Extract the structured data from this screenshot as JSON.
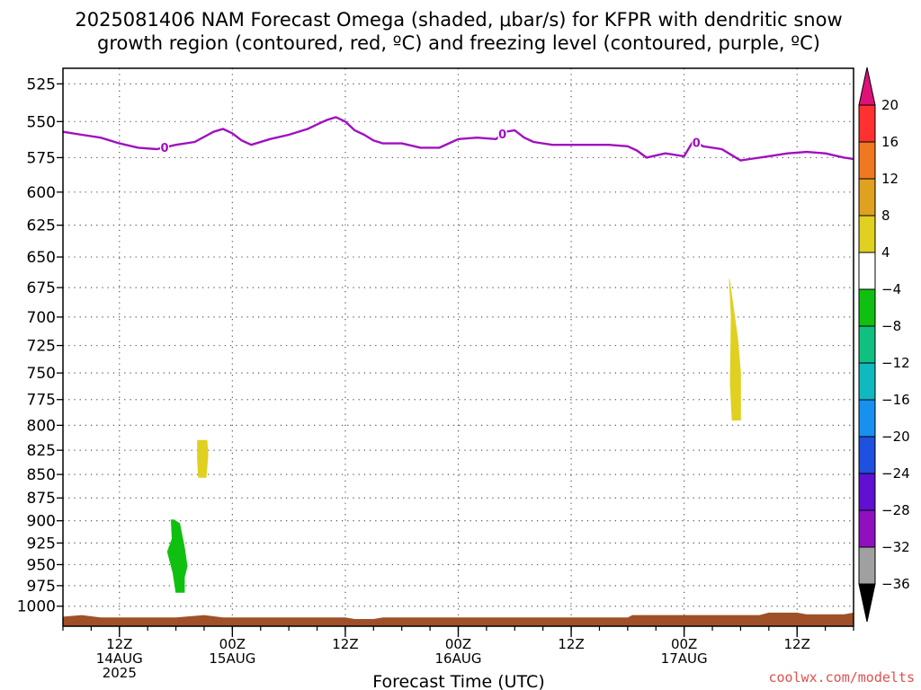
{
  "chart_data": {
    "type": "heatmap",
    "title_line1": "2025081406 NAM Forecast Omega (shaded, μbar/s) for KFPR with dendritic snow",
    "title_line2": "growth region (contoured, red, ºC) and freezing level (contoured, purple, ºC)",
    "xlabel": "Forecast Time (UTC)",
    "ylabel": "",
    "credit": "coolwx.com/modelts",
    "x_range_hours": [
      0,
      84
    ],
    "y_range_hpa": [
      1025,
      515
    ],
    "y_scale": "log",
    "grid": true,
    "legend_position": "right colorbar",
    "y_ticks": [
      525,
      550,
      575,
      600,
      625,
      650,
      675,
      700,
      725,
      750,
      775,
      800,
      825,
      850,
      875,
      900,
      925,
      950,
      975,
      1000
    ],
    "x_ticks": [
      {
        "hour": 6,
        "label": "12Z",
        "date": "14AUG",
        "year": "2025"
      },
      {
        "hour": 18,
        "label": "00Z",
        "date": "15AUG",
        "year": ""
      },
      {
        "hour": 30,
        "label": "12Z",
        "date": "",
        "year": ""
      },
      {
        "hour": 42,
        "label": "00Z",
        "date": "16AUG",
        "year": ""
      },
      {
        "hour": 54,
        "label": "12Z",
        "date": "",
        "year": ""
      },
      {
        "hour": 66,
        "label": "00Z",
        "date": "17AUG",
        "year": ""
      },
      {
        "hour": 78,
        "label": "12Z",
        "date": "",
        "year": ""
      }
    ],
    "colorbar": {
      "tick_labels": [
        "20",
        "16",
        "12",
        "8",
        "4",
        "−4",
        "−8",
        "−12",
        "−16",
        "−20",
        "−24",
        "−28",
        "−32",
        "−36"
      ],
      "bins": [
        {
          "from": 16,
          "to": 20,
          "color": "#ff3030"
        },
        {
          "from": 12,
          "to": 16,
          "color": "#f07820"
        },
        {
          "from": 8,
          "to": 12,
          "color": "#e0a020"
        },
        {
          "from": 4,
          "to": 8,
          "color": "#e0d020"
        },
        {
          "from": -4,
          "to": 4,
          "color": "#ffffff"
        },
        {
          "from": -8,
          "to": -4,
          "color": "#10c010"
        },
        {
          "from": -12,
          "to": -8,
          "color": "#10c080"
        },
        {
          "from": -16,
          "to": -12,
          "color": "#10b8c0"
        },
        {
          "from": -20,
          "to": -16,
          "color": "#1890f0"
        },
        {
          "from": -24,
          "to": -20,
          "color": "#2050e0"
        },
        {
          "from": -28,
          "to": -24,
          "color": "#6010d0"
        },
        {
          "from": -32,
          "to": -28,
          "color": "#9010c0"
        },
        {
          "from": -36,
          "to": -32,
          "color": "#a0a0a0"
        }
      ],
      "top_arrow_color": "#e0107a",
      "bottom_arrow_color": "#000000"
    },
    "freezing_level": {
      "color": "#a010c0",
      "contour_label": "0",
      "label_hours": [
        10.8,
        46.7,
        67.3
      ],
      "points": [
        [
          0,
          557
        ],
        [
          2,
          559
        ],
        [
          4,
          561
        ],
        [
          6,
          565
        ],
        [
          8,
          568
        ],
        [
          10,
          569
        ],
        [
          12,
          566
        ],
        [
          14,
          564
        ],
        [
          16,
          557
        ],
        [
          17,
          555
        ],
        [
          18,
          558
        ],
        [
          19,
          563
        ],
        [
          20,
          566
        ],
        [
          22,
          562
        ],
        [
          24,
          559
        ],
        [
          26,
          555
        ],
        [
          27,
          552
        ],
        [
          28,
          549
        ],
        [
          29,
          547
        ],
        [
          30,
          550
        ],
        [
          31,
          556
        ],
        [
          32,
          559
        ],
        [
          33,
          563
        ],
        [
          34,
          565
        ],
        [
          36,
          565
        ],
        [
          38,
          568
        ],
        [
          40,
          568
        ],
        [
          41,
          565
        ],
        [
          42,
          562
        ],
        [
          44,
          561
        ],
        [
          46,
          562
        ],
        [
          47,
          557
        ],
        [
          48,
          556
        ],
        [
          49,
          561
        ],
        [
          50,
          564
        ],
        [
          52,
          566
        ],
        [
          54,
          566
        ],
        [
          56,
          566
        ],
        [
          58,
          566
        ],
        [
          60,
          567
        ],
        [
          61,
          570
        ],
        [
          62,
          575
        ],
        [
          64,
          572
        ],
        [
          66,
          574
        ],
        [
          67,
          563
        ],
        [
          68,
          567
        ],
        [
          70,
          569
        ],
        [
          71,
          573
        ],
        [
          72,
          577
        ],
        [
          73,
          576
        ],
        [
          75,
          574
        ],
        [
          77,
          572
        ],
        [
          79,
          571
        ],
        [
          81,
          572
        ],
        [
          83,
          575
        ],
        [
          84,
          576
        ]
      ]
    },
    "omega_regions": [
      {
        "value_range": [
          -8,
          -4
        ],
        "color": "#10c010",
        "points": [
          [
            11.8,
            899
          ],
          [
            12.4,
            903
          ],
          [
            12.9,
            930
          ],
          [
            13.2,
            952
          ],
          [
            12.9,
            965
          ],
          [
            12.9,
            983
          ],
          [
            12.0,
            983
          ],
          [
            11.7,
            960
          ],
          [
            11.1,
            935
          ],
          [
            11.6,
            920
          ],
          [
            11.5,
            899
          ]
        ]
      },
      {
        "value_range": [
          4,
          8
        ],
        "color": "#e0d020",
        "points": [
          [
            14.3,
            815
          ],
          [
            15.3,
            815
          ],
          [
            15.4,
            830
          ],
          [
            15.2,
            853
          ],
          [
            14.4,
            853
          ],
          [
            14.3,
            835
          ]
        ]
      },
      {
        "value_range": [
          4,
          8
        ],
        "color": "#e0d020",
        "points": [
          [
            70.8,
            668
          ],
          [
            71.2,
            690
          ],
          [
            71.7,
            720
          ],
          [
            72.0,
            750
          ],
          [
            72.0,
            795
          ],
          [
            71.1,
            795
          ],
          [
            70.9,
            760
          ],
          [
            71.0,
            700
          ]
        ]
      }
    ],
    "terrain": {
      "color": "#a05028",
      "points": [
        [
          0,
          1013
        ],
        [
          2,
          1011
        ],
        [
          4,
          1014
        ],
        [
          12,
          1014
        ],
        [
          15,
          1011
        ],
        [
          17,
          1014
        ],
        [
          30,
          1014
        ],
        [
          31,
          1016
        ],
        [
          33,
          1016
        ],
        [
          34,
          1014
        ],
        [
          60,
          1014
        ],
        [
          60.5,
          1011
        ],
        [
          74,
          1011
        ],
        [
          75,
          1008
        ],
        [
          78,
          1008
        ],
        [
          79,
          1010
        ],
        [
          83,
          1010
        ],
        [
          84,
          1008
        ]
      ]
    }
  }
}
